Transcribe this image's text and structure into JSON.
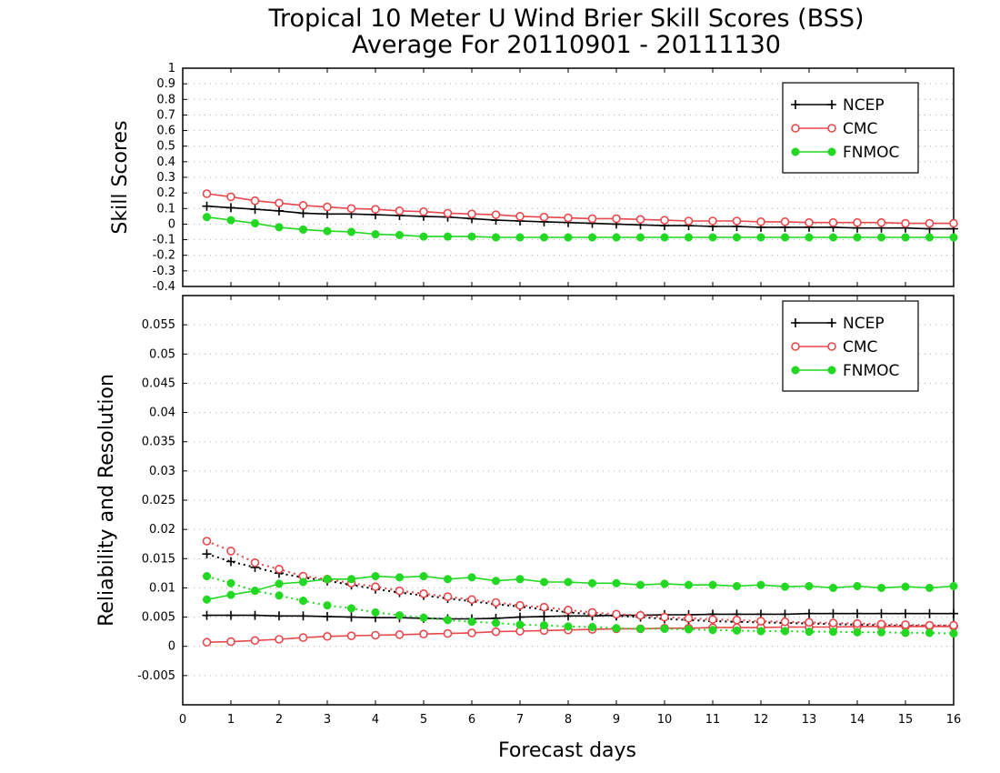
{
  "title_line1": "Tropical 10 Meter U Wind Brier Skill Scores (BSS)",
  "title_line2": "Average For 20110901 - 20111130",
  "xlabel": "Forecast days",
  "colors": {
    "NCEP": "#000000",
    "CMC": "#e8474b",
    "FNMOC": "#22d822",
    "grid": "#aaaaaa"
  },
  "chart_data": [
    {
      "type": "line",
      "ylabel": "Skill Scores",
      "xlim": [
        0,
        16
      ],
      "ylim": [
        -0.4,
        1
      ],
      "x_ticks": [
        "0",
        "1",
        "2",
        "3",
        "4",
        "5",
        "6",
        "7",
        "8",
        "9",
        "10",
        "11",
        "12",
        "13",
        "14",
        "15",
        "16"
      ],
      "y_ticks": [
        "-0.4",
        "-0.3",
        "-0.2",
        "-0.1",
        "0",
        "0.1",
        "0.2",
        "0.3",
        "0.4",
        "0.5",
        "0.6",
        "0.7",
        "0.8",
        "0.9",
        "1"
      ],
      "grid": true,
      "legend": {
        "placement": "top-right",
        "entries": [
          "NCEP",
          "CMC",
          "FNMOC"
        ]
      },
      "x": [
        0.5,
        1,
        1.5,
        2,
        2.5,
        3,
        3.5,
        4,
        4.5,
        5,
        5.5,
        6,
        6.5,
        7,
        7.5,
        8,
        8.5,
        9,
        9.5,
        10,
        10.5,
        11,
        11.5,
        12,
        12.5,
        13,
        13.5,
        14,
        14.5,
        15,
        15.5,
        16
      ],
      "series": [
        {
          "name": "NCEP",
          "marker": "plus",
          "style": "solid",
          "values": [
            0.115,
            0.105,
            0.095,
            0.085,
            0.07,
            0.065,
            0.065,
            0.06,
            0.055,
            0.05,
            0.045,
            0.035,
            0.025,
            0.02,
            0.015,
            0.01,
            0.005,
            0.0,
            -0.005,
            -0.01,
            -0.01,
            -0.015,
            -0.015,
            -0.02,
            -0.02,
            -0.02,
            -0.02,
            -0.025,
            -0.025,
            -0.025,
            -0.03,
            -0.03
          ]
        },
        {
          "name": "CMC",
          "marker": "open-circle",
          "style": "solid",
          "values": [
            0.195,
            0.175,
            0.15,
            0.135,
            0.12,
            0.11,
            0.1,
            0.095,
            0.085,
            0.08,
            0.07,
            0.065,
            0.06,
            0.05,
            0.045,
            0.04,
            0.035,
            0.035,
            0.03,
            0.025,
            0.02,
            0.02,
            0.02,
            0.015,
            0.015,
            0.01,
            0.01,
            0.01,
            0.01,
            0.005,
            0.005,
            0.005
          ]
        },
        {
          "name": "FNMOC",
          "marker": "filled-circle",
          "style": "solid",
          "values": [
            0.045,
            0.025,
            0.005,
            -0.02,
            -0.035,
            -0.045,
            -0.05,
            -0.065,
            -0.07,
            -0.08,
            -0.08,
            -0.08,
            -0.085,
            -0.085,
            -0.085,
            -0.085,
            -0.085,
            -0.085,
            -0.085,
            -0.085,
            -0.085,
            -0.085,
            -0.085,
            -0.085,
            -0.085,
            -0.085,
            -0.085,
            -0.085,
            -0.085,
            -0.085,
            -0.085,
            -0.085
          ]
        }
      ]
    },
    {
      "type": "line",
      "ylabel": "Reliability and Resolution",
      "xlim": [
        0,
        16
      ],
      "ylim": [
        -0.01,
        0.06
      ],
      "x_ticks": [
        "0",
        "1",
        "2",
        "3",
        "4",
        "5",
        "6",
        "7",
        "8",
        "9",
        "10",
        "11",
        "12",
        "13",
        "14",
        "15",
        "16"
      ],
      "y_ticks": [
        "-0.005",
        "0",
        "0.005",
        "0.01",
        "0.015",
        "0.02",
        "0.025",
        "0.03",
        "0.035",
        "0.04",
        "0.045",
        "0.05",
        "0.055"
      ],
      "grid": true,
      "legend": {
        "placement": "top-right",
        "entries": [
          "NCEP",
          "CMC",
          "FNMOC"
        ]
      },
      "x": [
        0.5,
        1,
        1.5,
        2,
        2.5,
        3,
        3.5,
        4,
        4.5,
        5,
        5.5,
        6,
        6.5,
        7,
        7.5,
        8,
        8.5,
        9,
        9.5,
        10,
        10.5,
        11,
        11.5,
        12,
        12.5,
        13,
        13.5,
        14,
        14.5,
        15,
        15.5,
        16
      ],
      "series": [
        {
          "name": "NCEP",
          "component": "reliability",
          "marker": "plus",
          "style": "solid",
          "values": [
            0.0053,
            0.0053,
            0.0053,
            0.0052,
            0.0052,
            0.0051,
            0.005,
            0.0049,
            0.0049,
            0.0048,
            0.0047,
            0.0047,
            0.0048,
            0.005,
            0.0051,
            0.0052,
            0.0052,
            0.0053,
            0.0053,
            0.0054,
            0.0054,
            0.0055,
            0.0055,
            0.0055,
            0.0055,
            0.0056,
            0.0056,
            0.0056,
            0.0056,
            0.0056,
            0.0056,
            0.0056
          ]
        },
        {
          "name": "NCEP",
          "component": "resolution",
          "marker": "plus",
          "style": "dotted",
          "values": [
            0.0158,
            0.0145,
            0.0135,
            0.0125,
            0.0118,
            0.0112,
            0.0105,
            0.0098,
            0.0092,
            0.0087,
            0.0082,
            0.0077,
            0.0072,
            0.0068,
            0.0063,
            0.0058,
            0.0055,
            0.0052,
            0.005,
            0.0047,
            0.0045,
            0.0043,
            0.0042,
            0.0041,
            0.004,
            0.0039,
            0.0038,
            0.0037,
            0.0036,
            0.0035,
            0.0035,
            0.0035
          ]
        },
        {
          "name": "CMC",
          "component": "reliability",
          "marker": "open-circle",
          "style": "solid",
          "values": [
            0.0007,
            0.0008,
            0.001,
            0.0012,
            0.0015,
            0.0017,
            0.0018,
            0.0019,
            0.002,
            0.0021,
            0.0022,
            0.0023,
            0.0025,
            0.0026,
            0.0027,
            0.0028,
            0.0029,
            0.003,
            0.003,
            0.0031,
            0.0031,
            0.0032,
            0.0032,
            0.0032,
            0.0033,
            0.0033,
            0.0033,
            0.0034,
            0.0034,
            0.0034,
            0.0034,
            0.0034
          ]
        },
        {
          "name": "CMC",
          "component": "resolution",
          "marker": "open-circle",
          "style": "dotted",
          "values": [
            0.018,
            0.0163,
            0.0143,
            0.0132,
            0.012,
            0.0115,
            0.0108,
            0.0102,
            0.0095,
            0.009,
            0.0085,
            0.008,
            0.0075,
            0.007,
            0.0067,
            0.0062,
            0.0058,
            0.0055,
            0.0053,
            0.005,
            0.0048,
            0.0046,
            0.0045,
            0.0043,
            0.0042,
            0.0041,
            0.004,
            0.0039,
            0.0038,
            0.0037,
            0.0036,
            0.0036
          ]
        },
        {
          "name": "FNMOC",
          "component": "reliability",
          "marker": "filled-circle",
          "style": "dotted",
          "values": [
            0.012,
            0.0108,
            0.0095,
            0.0087,
            0.0078,
            0.007,
            0.0065,
            0.0058,
            0.0053,
            0.0049,
            0.0045,
            0.0042,
            0.004,
            0.0037,
            0.0036,
            0.0034,
            0.0033,
            0.0031,
            0.003,
            0.003,
            0.0029,
            0.0028,
            0.0027,
            0.0026,
            0.0026,
            0.0025,
            0.0025,
            0.0024,
            0.0024,
            0.0023,
            0.0023,
            0.0022
          ]
        },
        {
          "name": "FNMOC",
          "component": "resolution",
          "marker": "filled-circle",
          "style": "solid",
          "values": [
            0.008,
            0.0088,
            0.0095,
            0.0107,
            0.011,
            0.0115,
            0.0115,
            0.012,
            0.0118,
            0.012,
            0.0115,
            0.0118,
            0.0112,
            0.0115,
            0.011,
            0.011,
            0.0108,
            0.0108,
            0.0105,
            0.0107,
            0.0105,
            0.0105,
            0.0103,
            0.0105,
            0.0102,
            0.0103,
            0.01,
            0.0103,
            0.01,
            0.0102,
            0.01,
            0.0103
          ]
        }
      ]
    }
  ]
}
